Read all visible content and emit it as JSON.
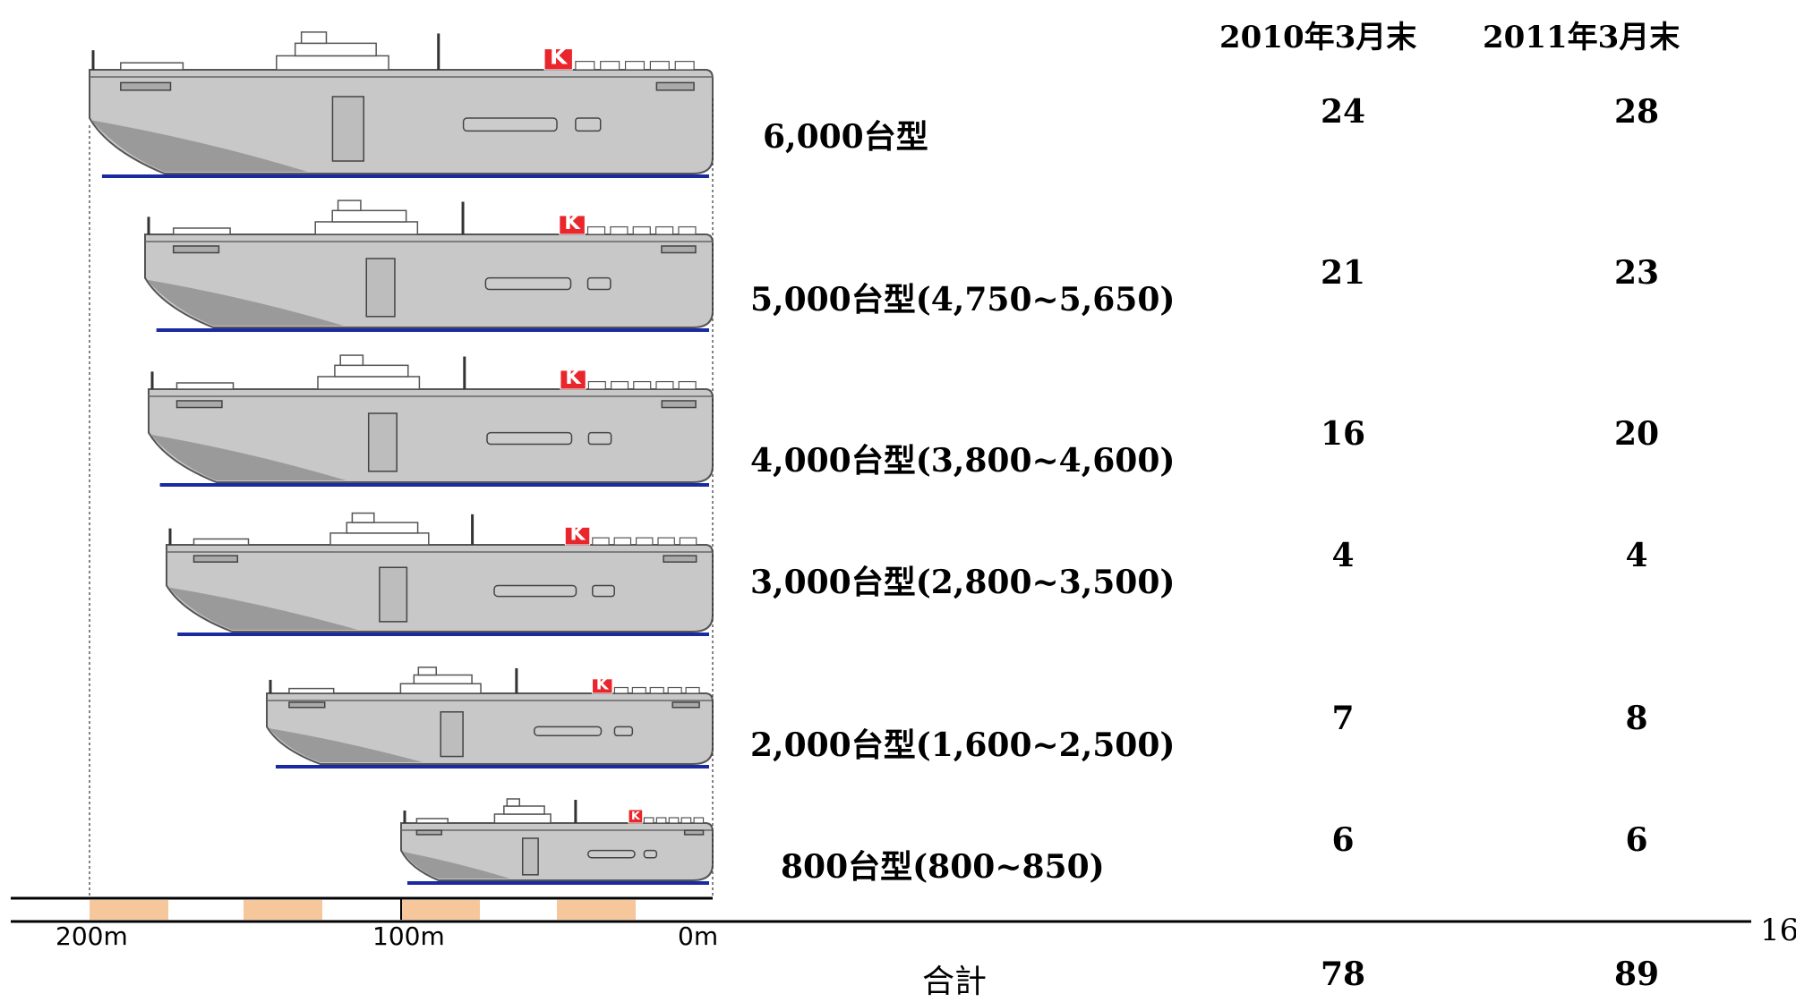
{
  "columns": [
    "2010年3月末",
    "2011年3月末"
  ],
  "rows": [
    {
      "label": "6,000台型",
      "v2010": "24",
      "v2011": "28"
    },
    {
      "label": "5,000台型(4,750~5,650)",
      "v2010": "21",
      "v2011": "23"
    },
    {
      "label": "4,000台型(3,800~4,600)",
      "v2010": "16",
      "v2011": "20"
    },
    {
      "label": "3,000台型(2,800~3,500)",
      "v2010": "4",
      "v2011": "4"
    },
    {
      "label": "2,000台型(1,600~2,500)",
      "v2010": "7",
      "v2011": "8"
    },
    {
      "label": "800台型(800~850)",
      "v2010": "6",
      "v2011": "6"
    }
  ],
  "total": {
    "label": "合計",
    "v2010": "78",
    "v2011": "89"
  },
  "scale": {
    "labels": [
      "200m",
      "100m",
      "0m"
    ]
  },
  "funnel_mark": "K",
  "page_number": "16",
  "colors": {
    "hull": "#c8c8c8",
    "hull_shadow": "#9a9a9a",
    "waterline": "#1a2aa0",
    "scale_band": "#f7c79c",
    "funnel": "#e8262c"
  }
}
